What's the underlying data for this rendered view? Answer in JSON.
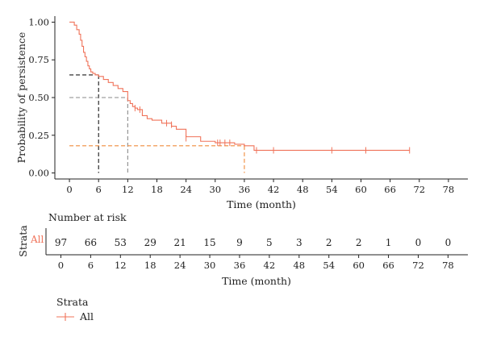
{
  "chart_data": {
    "type": "line",
    "xlabel": "Time (month)",
    "ylabel": "Probability of persistence",
    "xlim": [
      -3,
      82
    ],
    "ylim": [
      -0.04,
      1.04
    ],
    "x_ticks": [
      0,
      6,
      12,
      18,
      24,
      30,
      36,
      42,
      48,
      54,
      60,
      66,
      72,
      78
    ],
    "y_ticks": [
      "0.00",
      "0.25",
      "0.50",
      "0.75",
      "1.00"
    ],
    "y_tick_values": [
      0,
      0.25,
      0.5,
      0.75,
      1.0
    ],
    "grid": false,
    "series": [
      {
        "name": "All",
        "color": "#f0735a",
        "step_x": [
          0,
          1,
          1.5,
          2,
          2.3,
          2.6,
          2.9,
          3.2,
          3.5,
          3.8,
          4.1,
          4.4,
          4.8,
          5.3,
          6,
          7,
          8,
          9,
          10,
          11,
          12,
          12.5,
          13,
          13.5,
          14,
          15,
          16,
          17,
          19,
          21,
          22,
          24,
          27,
          30,
          34,
          36,
          38,
          42,
          54,
          61,
          70
        ],
        "step_y": [
          1.0,
          0.98,
          0.95,
          0.92,
          0.88,
          0.84,
          0.8,
          0.77,
          0.74,
          0.71,
          0.69,
          0.67,
          0.66,
          0.65,
          0.64,
          0.62,
          0.6,
          0.58,
          0.56,
          0.54,
          0.48,
          0.46,
          0.44,
          0.43,
          0.42,
          0.38,
          0.36,
          0.35,
          0.33,
          0.31,
          0.29,
          0.24,
          0.21,
          0.2,
          0.19,
          0.18,
          0.15,
          0.15,
          0.15,
          0.15,
          0.15
        ],
        "censor_x": [
          13.5,
          14.5,
          20,
          21,
          24,
          30.5,
          31,
          32,
          33,
          38.5,
          42,
          54,
          61,
          70
        ],
        "censor_y": [
          0.43,
          0.42,
          0.33,
          0.32,
          0.23,
          0.2,
          0.2,
          0.2,
          0.2,
          0.15,
          0.15,
          0.15,
          0.15,
          0.15
        ]
      }
    ],
    "reference_lines": [
      {
        "x": 6,
        "y": 0.65,
        "color": "#1a1a1a"
      },
      {
        "x": 12,
        "y": 0.5,
        "color": "#8a8a8a"
      },
      {
        "x": 36,
        "y": 0.18,
        "color": "#f08a3a"
      }
    ],
    "risk_table": {
      "title": "Number at risk",
      "row_title": "Strata",
      "row_label": "All",
      "times": [
        0,
        6,
        12,
        18,
        24,
        30,
        36,
        42,
        48,
        54,
        60,
        66,
        72,
        78
      ],
      "counts": [
        "97",
        "66",
        "53",
        "29",
        "21",
        "15",
        "9",
        "5",
        "3",
        "2",
        "2",
        "1",
        "0",
        "0"
      ],
      "xlabel": "Time (month)"
    },
    "legend": {
      "title": "Strata",
      "placement": "bottom-left",
      "entries": [
        "All"
      ]
    }
  }
}
